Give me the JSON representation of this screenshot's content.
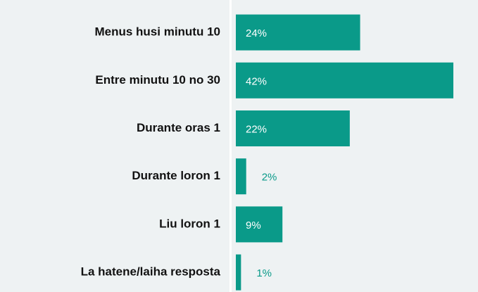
{
  "chart_data": {
    "type": "bar",
    "orientation": "horizontal",
    "categories": [
      "Menus husi minutu 10",
      "Entre minutu 10 no 30",
      "Durante oras 1",
      "Durante loron 1",
      "Liu loron 1",
      "La hatene/laiha resposta"
    ],
    "values": [
      24,
      42,
      22,
      2,
      9,
      1
    ],
    "value_labels": [
      "24%",
      "42%",
      "22%",
      "2%",
      "9%",
      "1%"
    ],
    "color": "#0a9a89"
  }
}
